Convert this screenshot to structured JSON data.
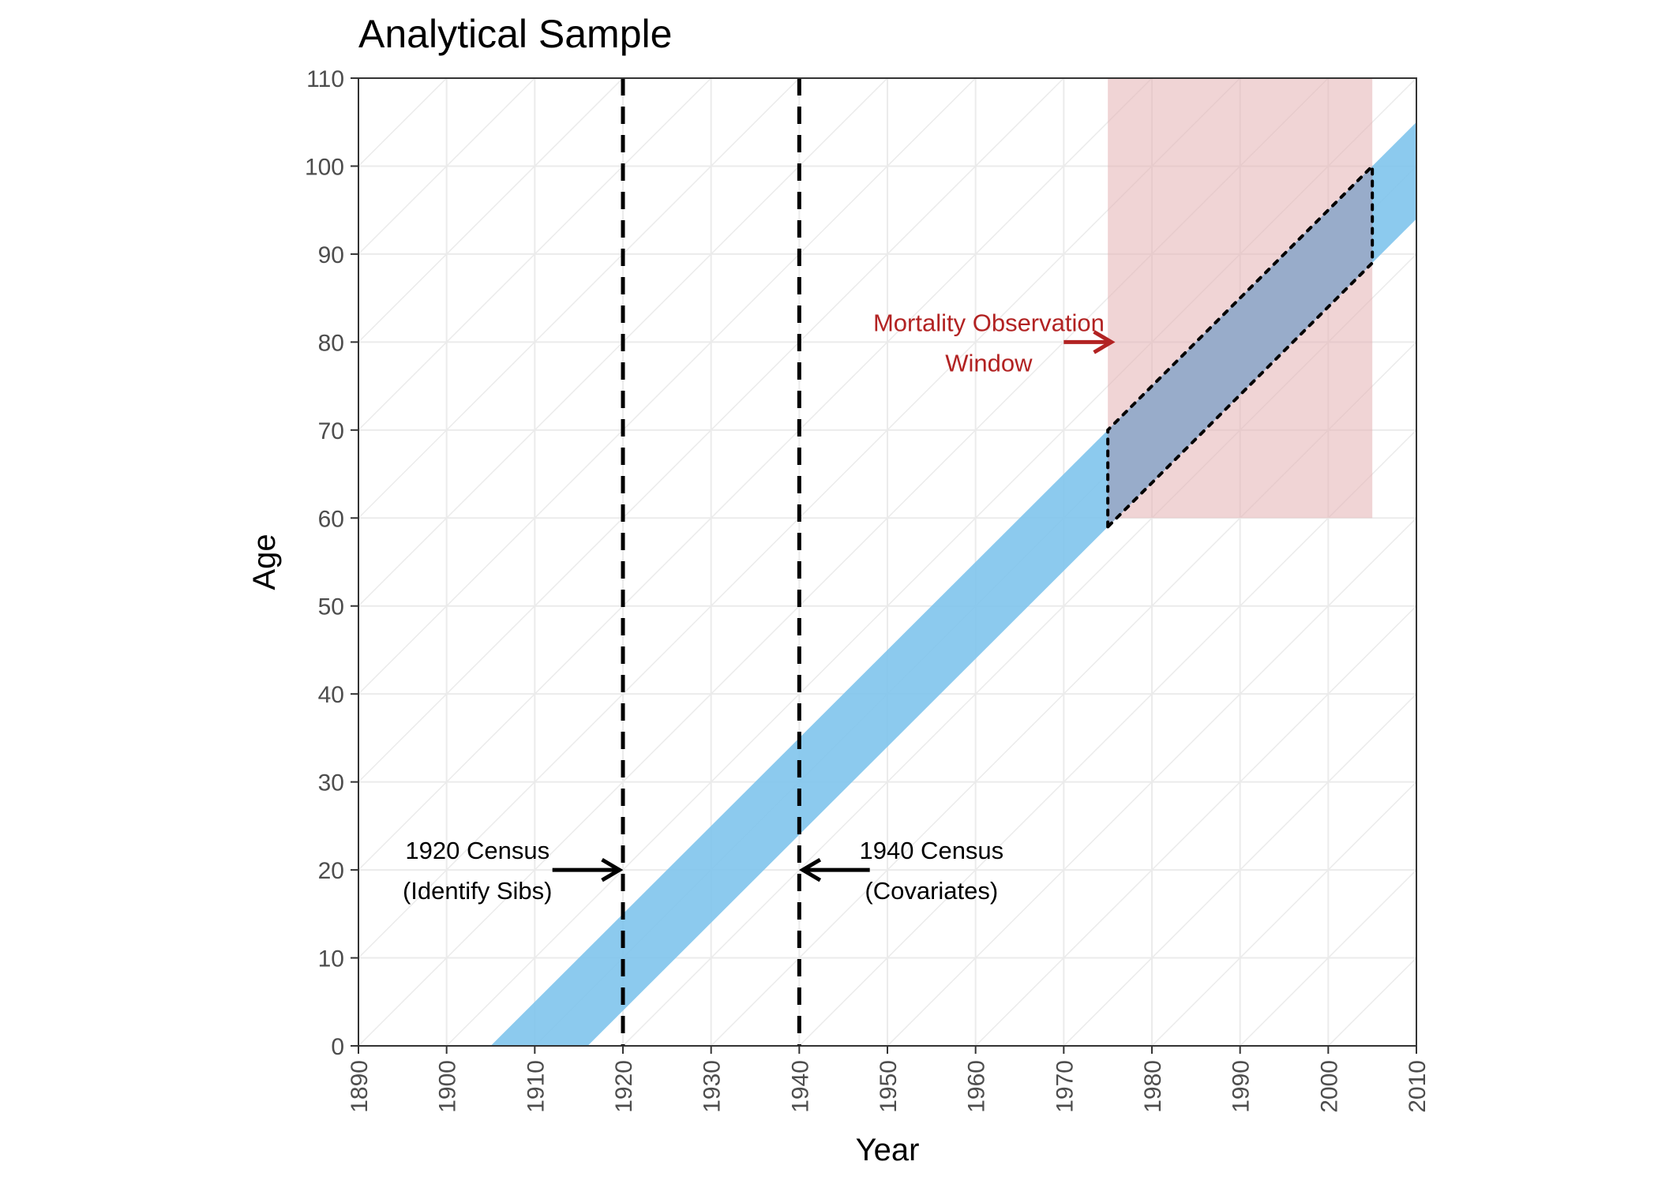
{
  "chart_data": {
    "type": "area",
    "title": "Analytical Sample",
    "xlabel": "Year",
    "ylabel": "Age",
    "xlim": [
      1890,
      2010
    ],
    "ylim": [
      0,
      110
    ],
    "x_ticks": [
      "1890",
      "1900",
      "1910",
      "1920",
      "1930",
      "1940",
      "1950",
      "1960",
      "1970",
      "1980",
      "1990",
      "2000",
      "2010"
    ],
    "y_ticks": [
      "0",
      "10",
      "20",
      "30",
      "40",
      "50",
      "60",
      "70",
      "80",
      "90",
      "100",
      "110"
    ],
    "grid": true,
    "lexis_diagonals": true,
    "cohort_band": {
      "birth_years": [
        1905,
        1916
      ],
      "color": "#7fc4ec"
    },
    "mortality_window": {
      "years": [
        1975,
        2005
      ],
      "ages": [
        60,
        110
      ],
      "color": "#e3b0b3"
    },
    "analytical_sample": {
      "polygon": [
        [
          1975,
          59
        ],
        [
          1975,
          70
        ],
        [
          2005,
          100
        ],
        [
          2005,
          89
        ]
      ],
      "color": "#9aa7c4"
    },
    "census_lines": [
      {
        "year": 1920,
        "label_line1": "1920 Census",
        "label_line2": "(Identify Sibs)",
        "arrow_from_year": 1912,
        "arrow_to_year": 1919.6,
        "arrow_age": 20,
        "text_center_year": 1903.5
      },
      {
        "year": 1940,
        "label_line1": "1940 Census",
        "label_line2": "(Covariates)",
        "arrow_from_year": 1948,
        "arrow_to_year": 1940.4,
        "arrow_age": 20,
        "text_center_year": 1955
      }
    ],
    "mortality_annotation": {
      "line1": "Mortality Observation",
      "line2": "Window",
      "color": "#b22222",
      "arrow_from_year": 1970,
      "arrow_to_year": 1975.4,
      "arrow_age": 80,
      "text_center_year": 1961.5
    }
  }
}
